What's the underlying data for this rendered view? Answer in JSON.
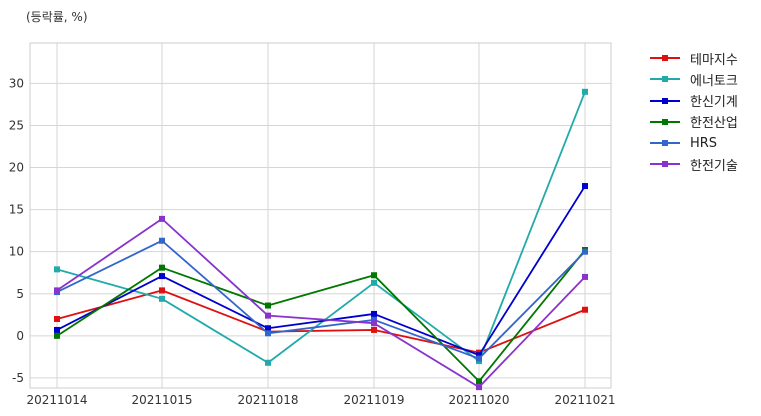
{
  "chart_data": {
    "type": "line",
    "title": "",
    "ylabel": "(등락률, %)",
    "xlabel": "",
    "categories": [
      "20211014",
      "20211015",
      "20211018",
      "20211019",
      "20211020",
      "20211021"
    ],
    "yticks": [
      -5,
      0,
      5,
      10,
      15,
      20,
      25,
      30
    ],
    "ylim": [
      -6.2,
      34.8
    ],
    "grid": true,
    "legend_position": "outside-right",
    "series": [
      {
        "name": "테마지수",
        "color": "#dd1111",
        "values": [
          2.0,
          5.4,
          0.5,
          0.7,
          -2.0,
          3.1
        ]
      },
      {
        "name": "에너토크",
        "color": "#22aaaa",
        "values": [
          7.9,
          4.4,
          -3.2,
          6.3,
          -3.0,
          29.0
        ]
      },
      {
        "name": "한신기계",
        "color": "#0000cc",
        "values": [
          0.7,
          7.1,
          0.9,
          2.6,
          -2.3,
          17.8
        ]
      },
      {
        "name": "한전산업",
        "color": "#007700",
        "values": [
          0.0,
          8.1,
          3.6,
          7.2,
          -5.4,
          10.2
        ]
      },
      {
        "name": "HRS",
        "color": "#3366cc",
        "values": [
          5.2,
          11.3,
          0.3,
          1.9,
          -2.7,
          10.0
        ]
      },
      {
        "name": "한전기술",
        "color": "#8833cc",
        "values": [
          5.4,
          13.9,
          2.4,
          1.5,
          -6.1,
          7.0
        ]
      }
    ]
  }
}
